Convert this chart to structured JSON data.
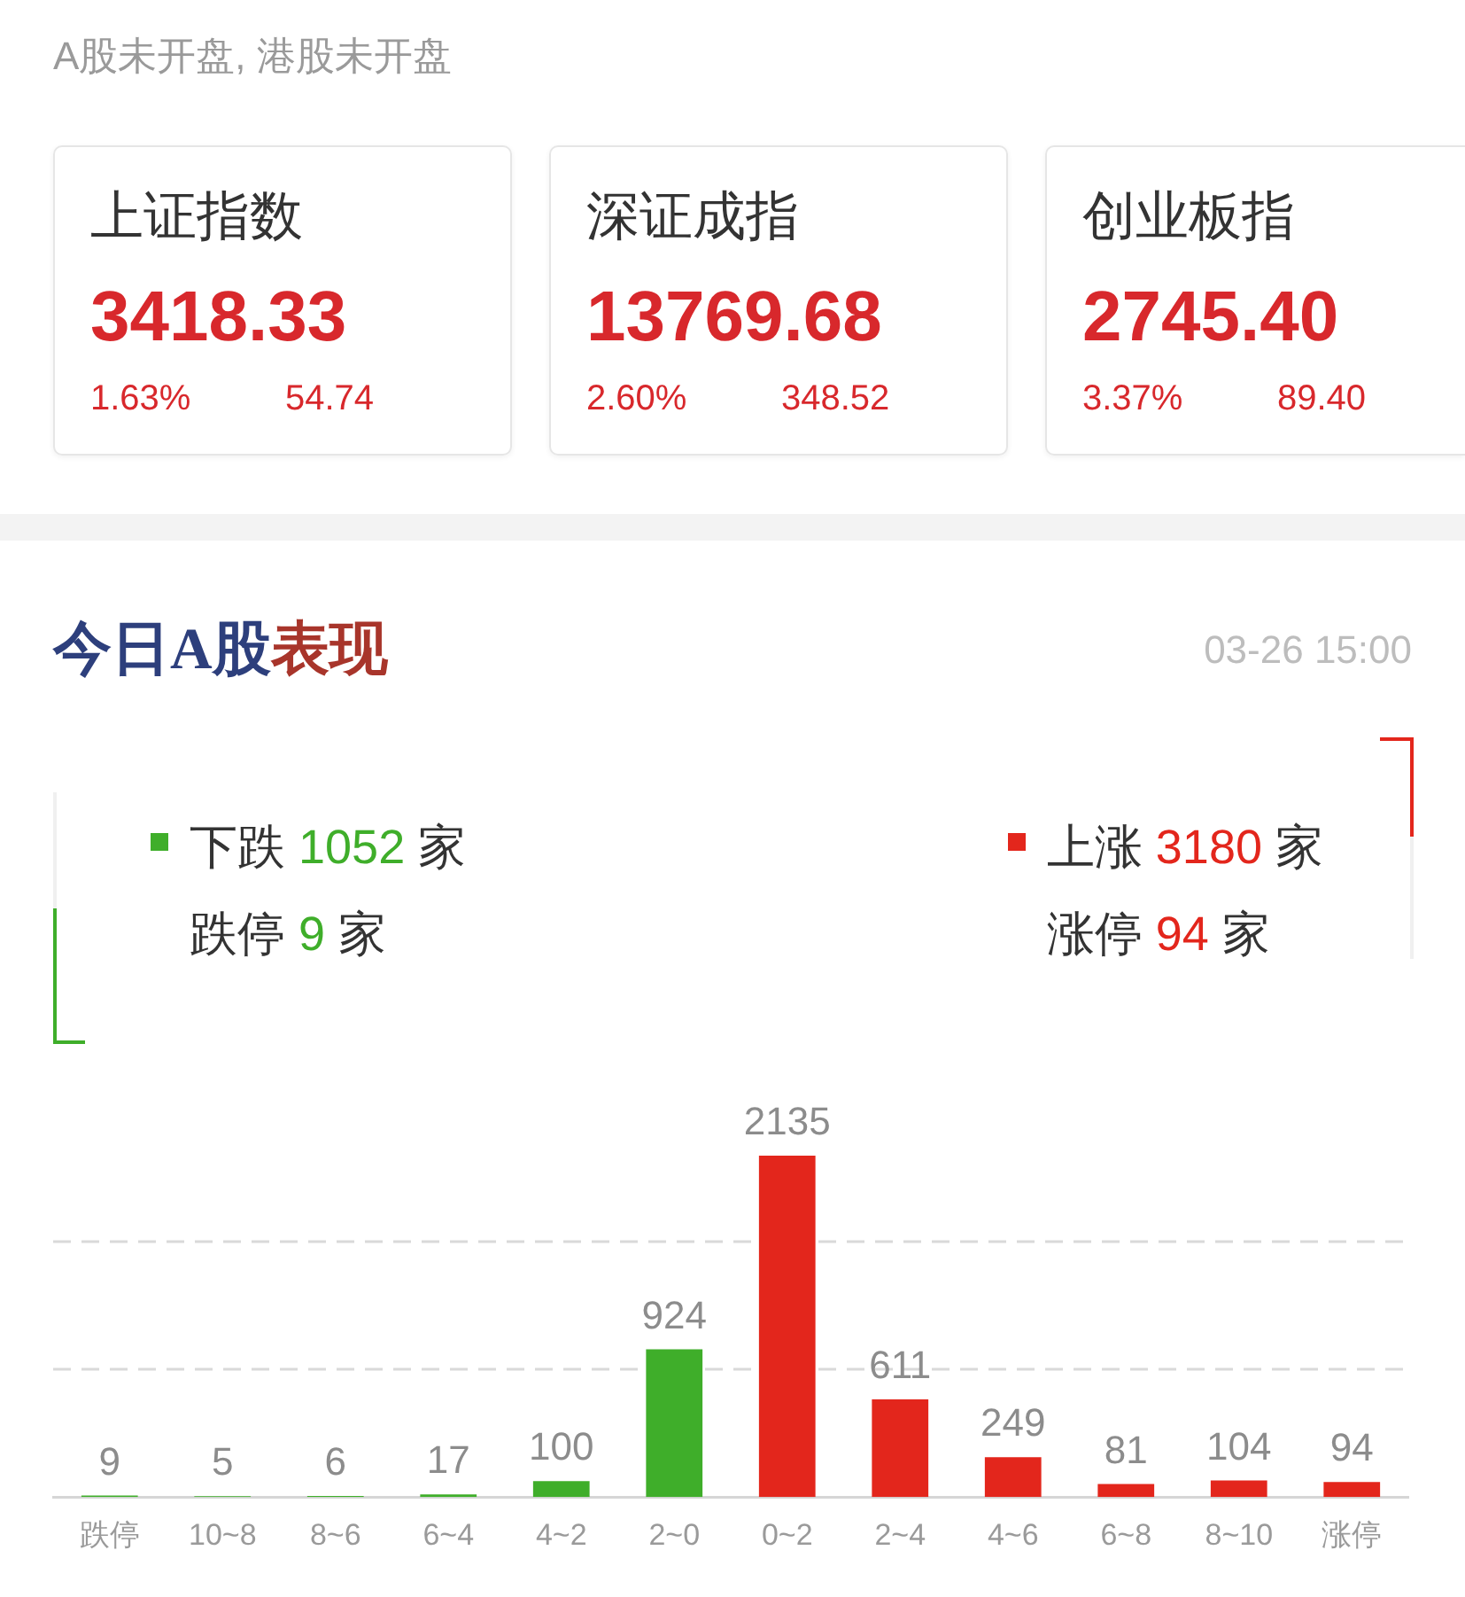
{
  "chart_data": [
    {
      "type": "other",
      "title": "A股未开盘, 港股未开盘"
    },
    {
      "type": "other",
      "title": "上证指数",
      "annotations": [
        "3418.33",
        "1.63%",
        "54.74"
      ]
    },
    {
      "type": "other",
      "title": "深证成指",
      "annotations": [
        "13769.68",
        "2.60%",
        "348.52"
      ]
    },
    {
      "type": "other",
      "title": "创业板指",
      "annotations": [
        "2745.40",
        "3.37%",
        "89.40"
      ]
    },
    {
      "type": "bar",
      "title": "今日A股表现",
      "subtitle": "03-26 15:00",
      "categories": [
        "跌停",
        "10~8",
        "8~6",
        "6~4",
        "4~2",
        "2~0",
        "0~2",
        "2~4",
        "4~6",
        "6~8",
        "8~10",
        "涨停"
      ],
      "series": [
        {
          "name": "下跌 1052 家",
          "color": "#3fae2a",
          "values": [
            9,
            5,
            6,
            17,
            100,
            924,
            null,
            null,
            null,
            null,
            null,
            null
          ]
        },
        {
          "name": "上涨 3180 家",
          "color": "#e3261c",
          "values": [
            null,
            null,
            null,
            null,
            null,
            null,
            2135,
            611,
            249,
            81,
            104,
            94
          ]
        }
      ],
      "annotations": [
        "跌停 9 家",
        "涨停 94 家"
      ],
      "data_labels": true,
      "legend": "top",
      "ref_lines": [
        {
          "axis": "y",
          "value": 800,
          "color": "#d9d9d9",
          "line_style": "dashed"
        },
        {
          "axis": "y",
          "value": 1600,
          "color": "#d9d9d9",
          "line_style": "dashed"
        }
      ],
      "tick_labels": "x"
    }
  ]
}
